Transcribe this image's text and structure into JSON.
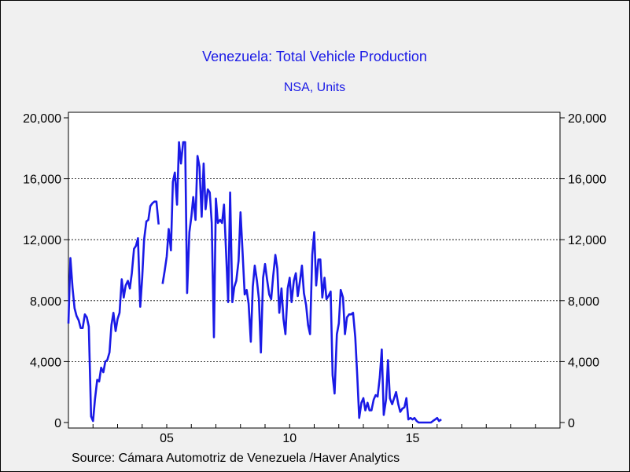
{
  "chart_data": {
    "type": "line",
    "title": "Venezuela: Total Vehicle Production",
    "subtitle": "NSA, Units",
    "source": "Source:  Cámara Automotriz de Venezuela /Haver Analytics",
    "ylim": [
      0,
      20000
    ],
    "y_ticks": [
      0,
      4000,
      8000,
      12000,
      16000,
      20000
    ],
    "y_tick_labels": [
      "0",
      "4,000",
      "8,000",
      "12,000",
      "16,000",
      "20,000"
    ],
    "xlim": [
      2001.0,
      2021.0
    ],
    "x_ticks": [
      2005,
      2010,
      2015
    ],
    "x_tick_labels": [
      "05",
      "10",
      "15"
    ],
    "line_color": "#1a1ae6",
    "grid": "horizontal dotted",
    "series": [
      {
        "name": "Total Vehicle Production",
        "segments": [
          [
            [
              2001.0,
              6500
            ],
            [
              2001.08,
              10800
            ],
            [
              2001.17,
              8800
            ],
            [
              2001.25,
              7500
            ],
            [
              2001.33,
              7000
            ],
            [
              2001.42,
              6700
            ],
            [
              2001.5,
              6200
            ],
            [
              2001.58,
              6200
            ],
            [
              2001.67,
              7100
            ],
            [
              2001.75,
              6900
            ],
            [
              2001.83,
              6300
            ],
            [
              2001.92,
              400
            ],
            [
              2002.0,
              100
            ],
            [
              2002.08,
              1500
            ],
            [
              2002.17,
              2800
            ],
            [
              2002.25,
              2700
            ],
            [
              2002.33,
              3600
            ],
            [
              2002.42,
              3300
            ],
            [
              2002.5,
              4000
            ],
            [
              2002.58,
              4100
            ],
            [
              2002.67,
              4600
            ],
            [
              2002.75,
              6400
            ],
            [
              2002.83,
              7200
            ],
            [
              2002.92,
              6000
            ],
            [
              2003.0,
              6800
            ],
            [
              2003.08,
              7200
            ],
            [
              2003.17,
              9400
            ],
            [
              2003.25,
              8200
            ],
            [
              2003.33,
              9000
            ],
            [
              2003.42,
              9300
            ],
            [
              2003.5,
              8800
            ],
            [
              2003.58,
              9800
            ],
            [
              2003.67,
              11400
            ],
            [
              2003.75,
              11600
            ],
            [
              2003.83,
              12100
            ],
            [
              2003.92,
              7600
            ],
            [
              2004.0,
              9500
            ],
            [
              2004.08,
              12000
            ],
            [
              2004.17,
              13200
            ],
            [
              2004.25,
              13300
            ],
            [
              2004.33,
              14200
            ],
            [
              2004.42,
              14400
            ],
            [
              2004.5,
              14500
            ],
            [
              2004.58,
              14500
            ],
            [
              2004.67,
              13000
            ]
          ],
          [
            [
              2004.83,
              9100
            ],
            [
              2004.92,
              10000
            ],
            [
              2005.0,
              10900
            ],
            [
              2005.08,
              12700
            ],
            [
              2005.17,
              11300
            ],
            [
              2005.25,
              15800
            ],
            [
              2005.33,
              16400
            ],
            [
              2005.42,
              14300
            ],
            [
              2005.5,
              18400
            ],
            [
              2005.58,
              17000
            ],
            [
              2005.67,
              18400
            ],
            [
              2005.75,
              18400
            ],
            [
              2005.83,
              8500
            ],
            [
              2005.92,
              12500
            ],
            [
              2006.0,
              13500
            ],
            [
              2006.08,
              14800
            ],
            [
              2006.17,
              13300
            ],
            [
              2006.25,
              17500
            ],
            [
              2006.33,
              16800
            ],
            [
              2006.42,
              13500
            ],
            [
              2006.5,
              17000
            ],
            [
              2006.58,
              14000
            ],
            [
              2006.67,
              15300
            ],
            [
              2006.75,
              15100
            ],
            [
              2006.83,
              13100
            ],
            [
              2006.92,
              5600
            ],
            [
              2007.0,
              14700
            ],
            [
              2007.08,
              13100
            ],
            [
              2007.17,
              13300
            ],
            [
              2007.25,
              13100
            ],
            [
              2007.33,
              14300
            ],
            [
              2007.42,
              11000
            ],
            [
              2007.5,
              7900
            ],
            [
              2007.58,
              15100
            ],
            [
              2007.67,
              7900
            ],
            [
              2007.75,
              8900
            ],
            [
              2007.83,
              9300
            ],
            [
              2007.92,
              10600
            ],
            [
              2008.0,
              13800
            ],
            [
              2008.08,
              11400
            ],
            [
              2008.17,
              8400
            ],
            [
              2008.25,
              8700
            ],
            [
              2008.33,
              7800
            ],
            [
              2008.42,
              5300
            ],
            [
              2008.5,
              8900
            ],
            [
              2008.58,
              10300
            ],
            [
              2008.67,
              9300
            ],
            [
              2008.75,
              8100
            ],
            [
              2008.83,
              4600
            ],
            [
              2008.92,
              9500
            ],
            [
              2009.0,
              10400
            ],
            [
              2009.08,
              9400
            ],
            [
              2009.17,
              8400
            ],
            [
              2009.25,
              8100
            ],
            [
              2009.33,
              9600
            ],
            [
              2009.42,
              11000
            ],
            [
              2009.5,
              10100
            ],
            [
              2009.58,
              7200
            ],
            [
              2009.67,
              8800
            ],
            [
              2009.75,
              6800
            ],
            [
              2009.83,
              5800
            ],
            [
              2009.92,
              8800
            ],
            [
              2010.0,
              9500
            ],
            [
              2010.08,
              7900
            ],
            [
              2010.17,
              9300
            ],
            [
              2010.25,
              9800
            ],
            [
              2010.33,
              8300
            ],
            [
              2010.42,
              9300
            ],
            [
              2010.5,
              10300
            ],
            [
              2010.58,
              8500
            ],
            [
              2010.67,
              7700
            ],
            [
              2010.75,
              6400
            ],
            [
              2010.83,
              5800
            ],
            [
              2010.92,
              11000
            ],
            [
              2011.0,
              12500
            ],
            [
              2011.08,
              9000
            ],
            [
              2011.17,
              10700
            ],
            [
              2011.25,
              10700
            ],
            [
              2011.33,
              8200
            ],
            [
              2011.42,
              9500
            ],
            [
              2011.5,
              8100
            ],
            [
              2011.58,
              8300
            ],
            [
              2011.67,
              8600
            ],
            [
              2011.75,
              3100
            ],
            [
              2011.83,
              1900
            ],
            [
              2011.92,
              5800
            ],
            [
              2012.0,
              6500
            ],
            [
              2012.08,
              8700
            ],
            [
              2012.17,
              8200
            ],
            [
              2012.25,
              5800
            ],
            [
              2012.33,
              6900
            ],
            [
              2012.42,
              7100
            ],
            [
              2012.5,
              7100
            ],
            [
              2012.58,
              7200
            ],
            [
              2012.67,
              5600
            ],
            [
              2012.75,
              3100
            ],
            [
              2012.83,
              300
            ],
            [
              2012.92,
              1300
            ],
            [
              2013.0,
              1600
            ],
            [
              2013.08,
              800
            ],
            [
              2013.17,
              1300
            ],
            [
              2013.25,
              800
            ],
            [
              2013.33,
              800
            ],
            [
              2013.42,
              1500
            ],
            [
              2013.5,
              1800
            ],
            [
              2013.58,
              1700
            ],
            [
              2013.67,
              3000
            ],
            [
              2013.75,
              4800
            ],
            [
              2013.83,
              500
            ],
            [
              2013.92,
              1500
            ],
            [
              2014.0,
              4100
            ],
            [
              2014.08,
              1600
            ],
            [
              2014.17,
              1200
            ],
            [
              2014.25,
              1600
            ],
            [
              2014.33,
              2000
            ],
            [
              2014.42,
              1200
            ],
            [
              2014.5,
              700
            ],
            [
              2014.58,
              900
            ],
            [
              2014.67,
              1000
            ],
            [
              2014.75,
              1600
            ],
            [
              2014.83,
              200
            ],
            [
              2014.92,
              300
            ],
            [
              2015.0,
              200
            ],
            [
              2015.08,
              300
            ],
            [
              2015.17,
              100
            ],
            [
              2015.25,
              0
            ],
            [
              2015.33,
              0
            ],
            [
              2015.42,
              0
            ],
            [
              2015.5,
              0
            ],
            [
              2015.58,
              0
            ],
            [
              2015.67,
              0
            ],
            [
              2015.75,
              0
            ],
            [
              2015.83,
              100
            ],
            [
              2015.92,
              200
            ],
            [
              2016.0,
              300
            ],
            [
              2016.08,
              100
            ],
            [
              2016.17,
              200
            ]
          ]
        ]
      }
    ]
  }
}
